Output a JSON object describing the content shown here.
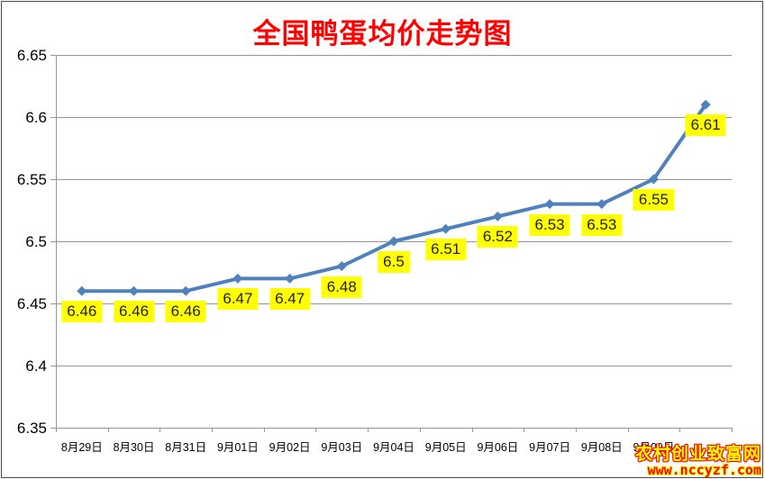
{
  "title": "全国鸭蛋均价走势图",
  "title_color": "#ff0000",
  "chart_data": {
    "type": "line",
    "title": "全国鸭蛋均价走势图",
    "categories": [
      "8月29日",
      "8月30日",
      "8月31日",
      "9月01日",
      "9月02日",
      "9月03日",
      "9月04日",
      "9月05日",
      "9月06日",
      "9月07日",
      "9月08日",
      "9月09日",
      ""
    ],
    "series": [
      {
        "name": "全国鸭蛋均价",
        "values": [
          6.46,
          6.46,
          6.46,
          6.47,
          6.47,
          6.48,
          6.5,
          6.51,
          6.52,
          6.53,
          6.53,
          6.55,
          6.61
        ],
        "data_labels": [
          "6.46",
          "6.46",
          "6.46",
          "6.47",
          "6.47",
          "6.48",
          "6.5",
          "6.51",
          "6.52",
          "6.53",
          "6.53",
          "6.55",
          "6.61"
        ],
        "color": "#4f81bd",
        "marker": "diamond"
      }
    ],
    "xlabel": "",
    "ylabel": "",
    "ylim": [
      6.35,
      6.65
    ],
    "y_ticks": [
      6.65,
      6.6,
      6.55,
      6.5,
      6.45,
      6.4,
      6.35
    ],
    "y_tick_labels": [
      "6.65",
      "6.6",
      "6.55",
      "6.5",
      "6.45",
      "6.4",
      "6.35"
    ],
    "grid": true,
    "legend": "none",
    "gridline_color": "#969696",
    "axis_color": "#969696",
    "data_label_bg": "#ffff00",
    "data_label_color": "#1f1f1f"
  },
  "watermark": {
    "line1": "农村创业致富网",
    "line2": "www.nccyzf.com"
  }
}
